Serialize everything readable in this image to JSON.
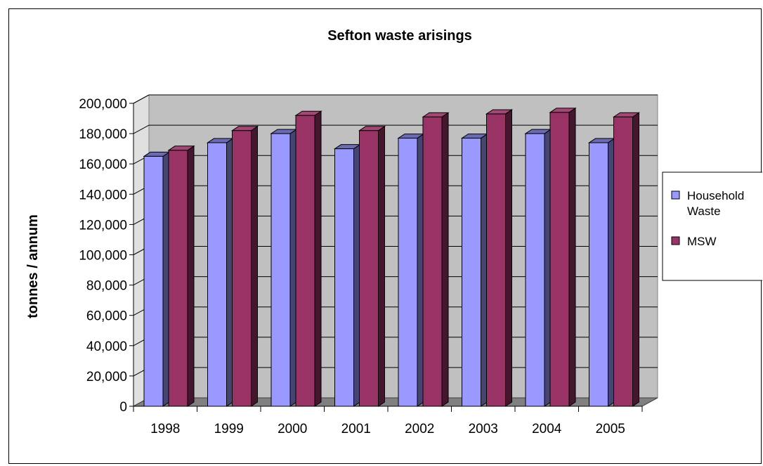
{
  "chart_data": {
    "type": "bar",
    "title": "Sefton waste arisings",
    "xlabel": "",
    "ylabel": "tonnes / annum",
    "categories": [
      "1998",
      "1999",
      "2000",
      "2001",
      "2002",
      "2003",
      "2004",
      "2005"
    ],
    "series": [
      {
        "name": "Household Waste",
        "color": "#9999FF",
        "values": [
          165000,
          174000,
          180000,
          170000,
          177000,
          177000,
          180000,
          174000
        ]
      },
      {
        "name": "MSW",
        "color": "#993366",
        "values": [
          169000,
          182000,
          192000,
          182000,
          191000,
          193000,
          194000,
          191000
        ]
      }
    ],
    "ylim": [
      0,
      200000
    ],
    "ytick_labels": [
      "0",
      "20,000",
      "40,000",
      "60,000",
      "80,000",
      "100,000",
      "120,000",
      "140,000",
      "160,000",
      "180,000",
      "200,000"
    ],
    "grid": true,
    "legend_position": "right",
    "legend": [
      "Household Waste",
      "MSW"
    ]
  }
}
